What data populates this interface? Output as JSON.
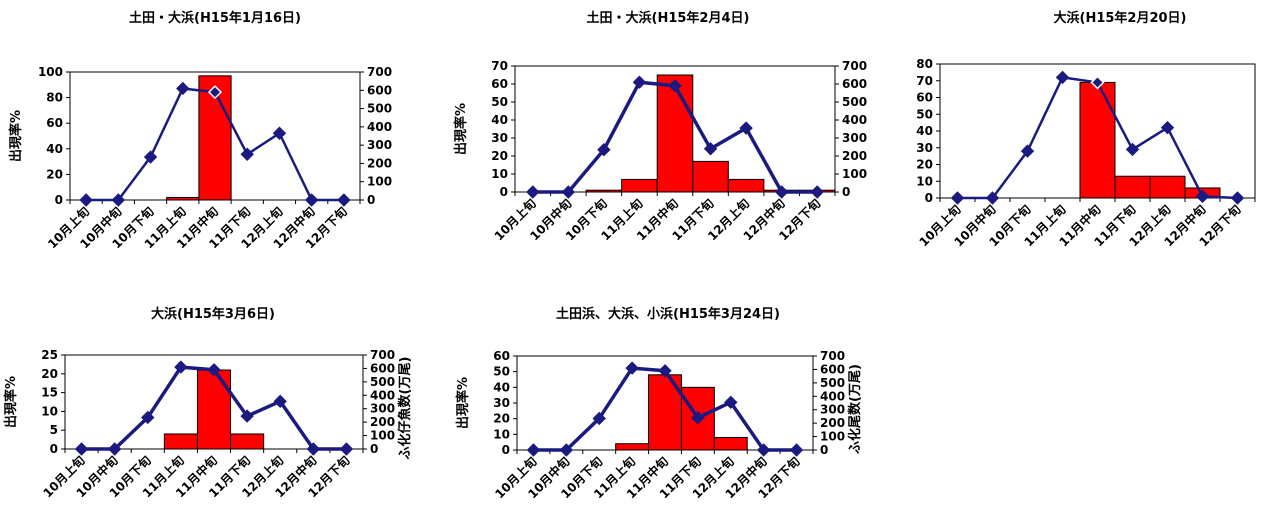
{
  "colors": {
    "bar": "#ff0000",
    "bar_stroke": "#000000",
    "line": "#1a1a80",
    "marker": "#1a1a80",
    "marker_highlight": "#ffffff"
  },
  "chart_data": [
    {
      "type": "bar",
      "title": "土田・大浜(H15年1月16日)",
      "categories": [
        "10月上旬",
        "10月中旬",
        "10月下旬",
        "11月上旬",
        "11月中旬",
        "11月下旬",
        "12月上旬",
        "12月中旬",
        "12月下旬"
      ],
      "ylabel": "出現率%",
      "y2label": "",
      "ylim": [
        0,
        100
      ],
      "yticks": [
        0,
        20,
        40,
        60,
        80,
        100
      ],
      "y2lim": [
        0,
        700
      ],
      "y2ticks": [
        0,
        100,
        200,
        300,
        400,
        500,
        600,
        700
      ],
      "series": [
        {
          "kind": "bar",
          "axis": "left",
          "values": [
            0,
            0,
            0,
            2,
            97,
            0,
            0,
            0,
            0
          ]
        },
        {
          "kind": "line",
          "axis": "right",
          "values": [
            0,
            0,
            235,
            610,
            590,
            250,
            365,
            0,
            0
          ]
        }
      ],
      "grid": false
    },
    {
      "type": "bar",
      "title": "土田・大浜(H15年2月4日)",
      "categories": [
        "10月上旬",
        "10月中旬",
        "10月下旬",
        "11月上旬",
        "11月中旬",
        "11月下旬",
        "12月上旬",
        "12月中旬",
        "12月下旬"
      ],
      "ylabel": "出現率%",
      "y2label": "",
      "ylim": [
        0,
        70
      ],
      "yticks": [
        0,
        10,
        20,
        30,
        40,
        50,
        60,
        70
      ],
      "y2lim": [
        0,
        700
      ],
      "y2ticks": [
        0,
        100,
        200,
        300,
        400,
        500,
        600,
        700
      ],
      "series": [
        {
          "kind": "bar",
          "axis": "left",
          "values": [
            0,
            0,
            1,
            7,
            65,
            17,
            7,
            1,
            1
          ]
        },
        {
          "kind": "line",
          "axis": "right",
          "values": [
            0,
            0,
            235,
            610,
            590,
            240,
            355,
            0,
            0
          ]
        }
      ],
      "grid": false
    },
    {
      "type": "bar",
      "title": "大浜(H15年2月20日)",
      "categories": [
        "10月上旬",
        "10月中旬",
        "10月下旬",
        "11月上旬",
        "11月中旬",
        "11月下旬",
        "12月上旬",
        "12月中旬",
        "12月下旬"
      ],
      "ylabel": "",
      "y2label": "",
      "ylim": [
        0,
        80
      ],
      "yticks": [
        0,
        10,
        20,
        30,
        40,
        50,
        60,
        70,
        80
      ],
      "series": [
        {
          "kind": "bar",
          "axis": "left",
          "values": [
            0,
            0,
            0,
            0,
            69,
            13,
            13,
            6,
            0
          ]
        },
        {
          "kind": "line",
          "axis": "left",
          "values": [
            0,
            0,
            28,
            72,
            69,
            29,
            42,
            1,
            0
          ]
        }
      ],
      "grid": false
    },
    {
      "type": "bar",
      "title": "大浜(H15年3月6日)",
      "categories": [
        "10月上旬",
        "10月中旬",
        "10月下旬",
        "11月上旬",
        "11月中旬",
        "11月下旬",
        "12月上旬",
        "12月中旬",
        "12月下旬"
      ],
      "ylabel": "出現率%",
      "y2label": "ふ化仔魚数(万尾)",
      "ylim": [
        0,
        25
      ],
      "yticks": [
        0,
        5,
        10,
        15,
        20,
        25
      ],
      "y2lim": [
        0,
        700
      ],
      "y2ticks": [
        0,
        100,
        200,
        300,
        400,
        500,
        600,
        700
      ],
      "series": [
        {
          "kind": "bar",
          "axis": "left",
          "values": [
            0,
            0,
            0,
            4,
            21,
            4,
            0,
            0,
            0
          ]
        },
        {
          "kind": "line",
          "axis": "right",
          "values": [
            0,
            0,
            235,
            610,
            590,
            245,
            355,
            0,
            0
          ]
        }
      ],
      "grid": false
    },
    {
      "type": "bar",
      "title": "土田浜、大浜、小浜(H15年3月24日)",
      "categories": [
        "10月上旬",
        "10月中旬",
        "10月下旬",
        "11月上旬",
        "11月中旬",
        "11月下旬",
        "12月上旬",
        "12月中旬",
        "12月下旬"
      ],
      "ylabel": "出現率%",
      "y2label": "ふ化尾数(万尾)",
      "ylim": [
        0,
        60
      ],
      "yticks": [
        0,
        10,
        20,
        30,
        40,
        50,
        60
      ],
      "y2lim": [
        0,
        700
      ],
      "y2ticks": [
        0,
        100,
        200,
        300,
        400,
        500,
        600,
        700
      ],
      "series": [
        {
          "kind": "bar",
          "axis": "left",
          "values": [
            0,
            0,
            0,
            4,
            48,
            40,
            8,
            0,
            0
          ]
        },
        {
          "kind": "line",
          "axis": "right",
          "values": [
            0,
            0,
            235,
            610,
            590,
            240,
            355,
            0,
            0
          ]
        }
      ],
      "grid": false
    }
  ]
}
